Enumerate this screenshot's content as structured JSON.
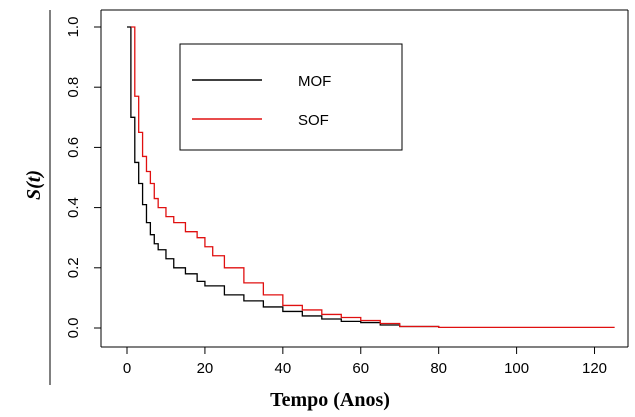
{
  "chart_data": {
    "type": "line",
    "step": true,
    "xlabel": "Tempo (Anos)",
    "ylabel": "S(t)",
    "xlim": [
      0,
      125
    ],
    "ylim": [
      0,
      1.0
    ],
    "xticks": [
      0,
      20,
      40,
      60,
      80,
      100,
      120
    ],
    "yticks": [
      0.0,
      0.2,
      0.4,
      0.6,
      0.8,
      1.0
    ],
    "xtick_labels": [
      "0",
      "20",
      "40",
      "60",
      "80",
      "100",
      "120"
    ],
    "ytick_labels": [
      "0.0",
      "0.2",
      "0.4",
      "0.6",
      "0.8",
      "1.0"
    ],
    "legend_position": "top-left",
    "grid": false,
    "series": [
      {
        "name": "MOF",
        "color": "#000000",
        "x": [
          0,
          1,
          2,
          3,
          4,
          5,
          6,
          7,
          8,
          10,
          12,
          15,
          18,
          20,
          25,
          30,
          35,
          40,
          45,
          50,
          55,
          60,
          65,
          70,
          80
        ],
        "y": [
          1.0,
          0.7,
          0.55,
          0.48,
          0.41,
          0.35,
          0.31,
          0.28,
          0.26,
          0.23,
          0.2,
          0.18,
          0.155,
          0.14,
          0.11,
          0.09,
          0.07,
          0.055,
          0.04,
          0.03,
          0.022,
          0.018,
          0.01,
          0.005,
          0.002
        ]
      },
      {
        "name": "SOF",
        "color": "#e01010",
        "x": [
          1,
          2,
          3,
          4,
          5,
          6,
          7,
          8,
          10,
          12,
          15,
          18,
          20,
          22,
          25,
          30,
          35,
          40,
          45,
          50,
          55,
          60,
          65,
          70,
          80,
          125
        ],
        "y": [
          1.0,
          0.77,
          0.65,
          0.57,
          0.52,
          0.48,
          0.43,
          0.4,
          0.37,
          0.35,
          0.32,
          0.3,
          0.27,
          0.24,
          0.2,
          0.15,
          0.11,
          0.075,
          0.06,
          0.045,
          0.035,
          0.025,
          0.015,
          0.005,
          0.002,
          0.0
        ]
      }
    ]
  }
}
